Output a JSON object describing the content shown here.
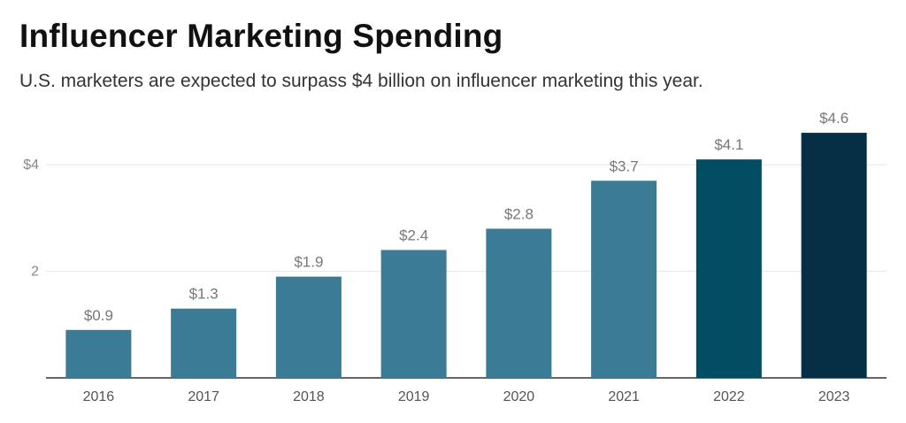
{
  "chart_data": {
    "type": "bar",
    "title": "Influencer Marketing Spending",
    "subtitle": "U.S. marketers are expected to surpass $4 billion on influencer marketing this year.",
    "categories": [
      "2016",
      "2017",
      "2018",
      "2019",
      "2020",
      "2021",
      "2022",
      "2023"
    ],
    "values": [
      0.9,
      1.3,
      1.9,
      2.4,
      2.8,
      3.7,
      4.1,
      4.6
    ],
    "data_labels": [
      "$0.9",
      "$1.3",
      "$1.9",
      "$2.4",
      "$2.8",
      "$3.7",
      "$4.1",
      "$4.6"
    ],
    "bar_colors": [
      "#3b7b95",
      "#3b7b95",
      "#3b7b95",
      "#3b7b95",
      "#3b7b95",
      "#3b7b95",
      "#034d63",
      "#062f45"
    ],
    "yticks": [
      {
        "value": 2,
        "label": "2"
      },
      {
        "value": 4,
        "label": "$4"
      }
    ],
    "ylim": [
      0,
      4.8
    ],
    "xlabel": "",
    "ylabel": "",
    "grid": true,
    "gridline_color": "#e6e6e6",
    "axis_color": "#333333"
  }
}
